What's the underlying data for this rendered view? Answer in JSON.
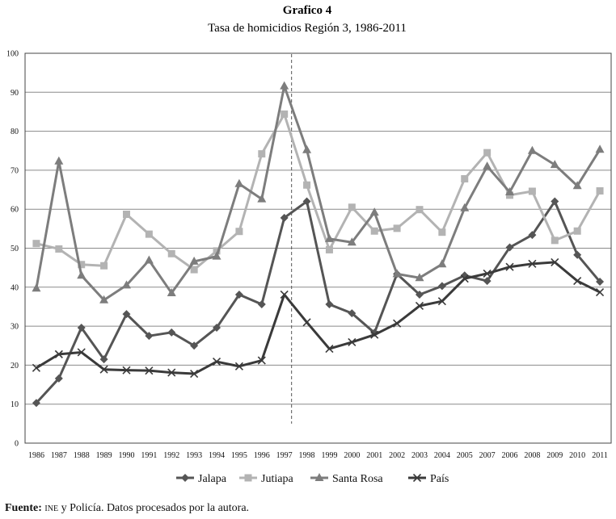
{
  "chart_data": {
    "type": "line",
    "title": "Grafico 4",
    "subtitle": "Tasa de homicidios Región 3, 1986-2011",
    "categories": [
      "1986",
      "1987",
      "1988",
      "1989",
      "1990",
      "1991",
      "1992",
      "1993",
      "1994",
      "1995",
      "1996",
      "1997",
      "1998",
      "1999",
      "2000",
      "2001",
      "2002",
      "2003",
      "2004",
      "2005",
      "2007",
      "2006",
      "2008",
      "2009",
      "2010",
      "2011"
    ],
    "ylim": [
      0,
      100
    ],
    "yticks": [
      "0",
      "10",
      "20",
      "30",
      "40",
      "50",
      "60",
      "70",
      "80",
      "90",
      "100"
    ],
    "grid": true,
    "legend": "bottom",
    "reference_line_category": "1997",
    "series": [
      {
        "name": "Jalapa",
        "marker": "diamond",
        "color": "#555555",
        "values": [
          10.3,
          16.6,
          29.6,
          21.5,
          33.1,
          27.5,
          28.4,
          25.0,
          29.6,
          38.1,
          35.6,
          57.8,
          62.0,
          35.6,
          33.3,
          28.3,
          43.4,
          38.1,
          40.3,
          43.0,
          41.6,
          50.2,
          53.4,
          62.0,
          48.3,
          41.4
        ]
      },
      {
        "name": "Jutiapa",
        "marker": "square",
        "color": "#b3b3b3",
        "values": [
          51.2,
          49.8,
          45.8,
          45.5,
          58.7,
          53.6,
          48.6,
          44.5,
          49.3,
          54.3,
          74.2,
          84.4,
          66.2,
          49.6,
          60.5,
          54.4,
          55.1,
          59.9,
          54.1,
          67.8,
          74.5,
          63.6,
          64.6,
          52.0,
          54.4,
          64.7
        ]
      },
      {
        "name": "Santa Rosa",
        "marker": "triangle",
        "color": "#7d7d7d",
        "values": [
          39.7,
          72.3,
          43.0,
          36.7,
          40.5,
          46.9,
          38.5,
          46.6,
          47.9,
          66.5,
          62.6,
          91.6,
          75.2,
          52.4,
          51.5,
          59.2,
          43.4,
          42.4,
          45.9,
          60.3,
          71.0,
          64.4,
          75.0,
          71.4,
          66.0,
          75.3
        ]
      },
      {
        "name": "País",
        "marker": "x",
        "color": "#3a3a3a",
        "values": [
          19.3,
          22.8,
          23.3,
          18.9,
          18.7,
          18.6,
          18.1,
          17.8,
          20.9,
          19.7,
          21.2,
          38.1,
          31.0,
          24.2,
          25.9,
          27.8,
          30.7,
          35.2,
          36.4,
          42.2,
          43.5,
          45.2,
          46.0,
          46.4,
          41.6,
          38.7
        ]
      }
    ]
  },
  "source": {
    "label": "Fuente:",
    "org": "ine",
    "text": " y Policía. Datos procesados por la autora."
  }
}
